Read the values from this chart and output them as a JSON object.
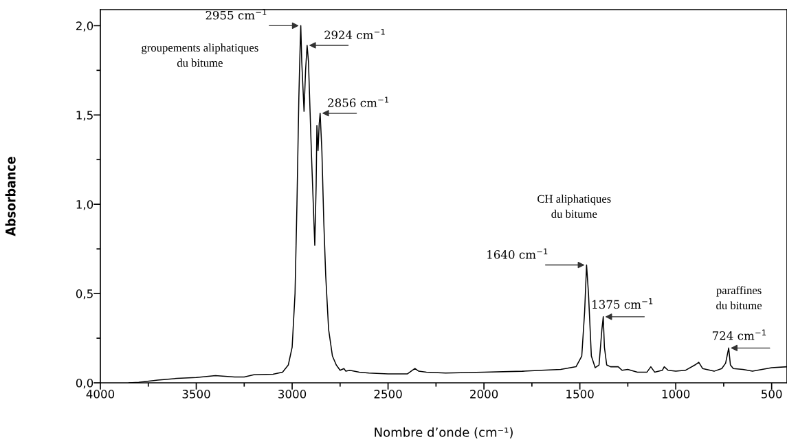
{
  "chart_data": {
    "type": "line",
    "xlabel": "Nombre d’onde (cm⁻¹)",
    "ylabel": "Absorbance",
    "xlim": [
      4000,
      420
    ],
    "ylim": [
      0,
      2.09
    ],
    "xticks": [
      4000,
      {
        "value": 3750,
        "label": null
      },
      3500,
      {
        "value": 3250,
        "label": null
      },
      3000,
      {
        "value": 2750,
        "label": null
      },
      2500,
      {
        "value": 2250,
        "label": null
      },
      2000,
      {
        "value": 1750,
        "label": null
      },
      1500,
      {
        "value": 1250,
        "label": null
      },
      1000,
      {
        "value": 750,
        "label": null
      },
      500
    ],
    "yticks": [
      {
        "value": 0,
        "label": "0,0"
      },
      {
        "value": 0.25,
        "label": null
      },
      {
        "value": 0.5,
        "label": "0,5"
      },
      {
        "value": 0.75,
        "label": null
      },
      {
        "value": 1.0,
        "label": "1,0"
      },
      {
        "value": 1.25,
        "label": null
      },
      {
        "value": 1.5,
        "label": "1,5"
      },
      {
        "value": 1.75,
        "label": null
      },
      {
        "value": 2.0,
        "label": "2,0"
      }
    ],
    "grid": false,
    "legend": false,
    "marker": "none",
    "line_style": "solid",
    "series": [
      {
        "color": "#000000",
        "x": [
          3850,
          3800,
          3700,
          3600,
          3500,
          3400,
          3300,
          3250,
          3200,
          3100,
          3050,
          3020,
          3000,
          2985,
          2975,
          2965,
          2958,
          2955,
          2950,
          2938,
          2930,
          2922,
          2915,
          2900,
          2882,
          2875,
          2871,
          2865,
          2859,
          2854,
          2845,
          2835,
          2825,
          2810,
          2790,
          2770,
          2750,
          2730,
          2720,
          2700,
          2650,
          2600,
          2500,
          2400,
          2360,
          2340,
          2300,
          2200,
          2000,
          1800,
          1700,
          1600,
          1520,
          1490,
          1475,
          1465,
          1455,
          1440,
          1420,
          1400,
          1385,
          1378,
          1372,
          1360,
          1340,
          1300,
          1280,
          1250,
          1200,
          1150,
          1130,
          1110,
          1070,
          1060,
          1040,
          1000,
          950,
          900,
          880,
          860,
          800,
          760,
          740,
          724,
          715,
          700,
          650,
          600,
          550,
          500,
          420
        ],
        "values": [
          0.0,
          0.003,
          0.015,
          0.025,
          0.03,
          0.04,
          0.033,
          0.033,
          0.045,
          0.048,
          0.06,
          0.1,
          0.2,
          0.5,
          1.0,
          1.6,
          1.9,
          2.0,
          1.8,
          1.52,
          1.75,
          1.89,
          1.8,
          1.3,
          0.77,
          1.1,
          1.44,
          1.3,
          1.45,
          1.51,
          1.3,
          0.9,
          0.6,
          0.3,
          0.15,
          0.1,
          0.07,
          0.08,
          0.065,
          0.07,
          0.06,
          0.055,
          0.05,
          0.05,
          0.08,
          0.065,
          0.06,
          0.055,
          0.06,
          0.065,
          0.07,
          0.075,
          0.09,
          0.15,
          0.4,
          0.66,
          0.5,
          0.15,
          0.085,
          0.1,
          0.3,
          0.37,
          0.2,
          0.1,
          0.09,
          0.09,
          0.07,
          0.075,
          0.06,
          0.06,
          0.09,
          0.06,
          0.07,
          0.09,
          0.07,
          0.065,
          0.07,
          0.1,
          0.115,
          0.08,
          0.065,
          0.08,
          0.11,
          0.195,
          0.1,
          0.08,
          0.075,
          0.065,
          0.075,
          0.085,
          0.09
        ]
      }
    ],
    "annotations": [
      {
        "text": "2955 cm$^{−1}$",
        "x": 2955,
        "y": 2.0
      },
      {
        "text": "2924 cm$^{−1}$",
        "x": 2922,
        "y": 1.89
      },
      {
        "text": "2856 cm$^{−1}$",
        "x": 2854,
        "y": 1.51
      },
      {
        "text": "1640 cm$^{−1}$",
        "x": 1465,
        "y": 0.66
      },
      {
        "text": "1375 cm$^{−1}$",
        "x": 1378,
        "y": 0.37
      },
      {
        "text": "724 cm$^{−1}$",
        "x": 724,
        "y": 0.195
      },
      "groupements aliphatiques\ndu bitume",
      "CH aliphatiques\ndu bitume",
      "paraffines\ndu bitume"
    ]
  }
}
